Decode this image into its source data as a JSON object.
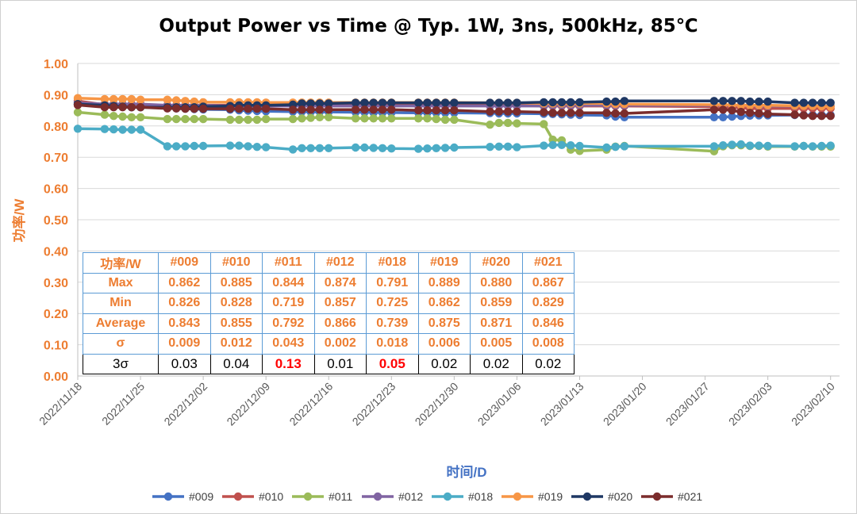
{
  "chart_data": {
    "type": "line",
    "title": "Output Power vs Time @ Typ. 1W, 3ns, 500kHz, 85℃",
    "xlabel": "时间/D",
    "ylabel": "功率/W",
    "ylim": [
      0,
      1.0
    ],
    "yticks": [
      "0.00",
      "0.10",
      "0.20",
      "0.30",
      "0.40",
      "0.50",
      "0.60",
      "0.70",
      "0.80",
      "0.90",
      "1.00"
    ],
    "xlim": [
      "2022-11-18",
      "2023-02-11"
    ],
    "xticks": [
      "2022/11/18",
      "2022/11/25",
      "2022/12/02",
      "2022/12/09",
      "2022/12/16",
      "2022/12/23",
      "2022/12/30",
      "2023/01/06",
      "2023/01/13",
      "2023/01/20",
      "2023/01/27",
      "2023/02/03",
      "2023/02/10"
    ],
    "grid": true,
    "legend_position": "bottom",
    "dates": [
      "2022-11-18",
      "2022-11-21",
      "2022-11-22",
      "2022-11-23",
      "2022-11-24",
      "2022-11-25",
      "2022-11-28",
      "2022-11-29",
      "2022-11-30",
      "2022-12-01",
      "2022-12-02",
      "2022-12-05",
      "2022-12-06",
      "2022-12-07",
      "2022-12-08",
      "2022-12-09",
      "2022-12-12",
      "2022-12-13",
      "2022-12-14",
      "2022-12-15",
      "2022-12-16",
      "2022-12-19",
      "2022-12-20",
      "2022-12-21",
      "2022-12-22",
      "2022-12-23",
      "2022-12-26",
      "2022-12-27",
      "2022-12-28",
      "2022-12-29",
      "2022-12-30",
      "2023-01-03",
      "2023-01-04",
      "2023-01-05",
      "2023-01-06",
      "2023-01-09",
      "2023-01-10",
      "2023-01-11",
      "2023-01-12",
      "2023-01-13",
      "2023-01-16",
      "2023-01-17",
      "2023-01-18",
      "2023-01-28",
      "2023-01-29",
      "2023-01-30",
      "2023-01-31",
      "2023-02-01",
      "2023-02-02",
      "2023-02-03",
      "2023-02-06",
      "2023-02-07",
      "2023-02-08",
      "2023-02-09",
      "2023-02-10"
    ],
    "series": [
      {
        "name": "#009",
        "color": "#4472C4",
        "values": [
          0.87,
          0.862,
          0.862,
          0.862,
          0.86,
          0.86,
          0.858,
          0.856,
          0.855,
          0.854,
          0.853,
          0.852,
          0.85,
          0.849,
          0.848,
          0.847,
          0.846,
          0.846,
          0.845,
          0.845,
          0.845,
          0.844,
          0.844,
          0.843,
          0.843,
          0.843,
          0.842,
          0.842,
          0.842,
          0.842,
          0.842,
          0.841,
          0.84,
          0.84,
          0.84,
          0.839,
          0.838,
          0.837,
          0.836,
          0.835,
          0.834,
          0.83,
          0.828,
          0.828,
          0.828,
          0.83,
          0.832,
          0.833,
          0.834,
          0.834,
          0.835,
          0.835,
          0.835,
          0.835,
          0.835
        ]
      },
      {
        "name": "#010",
        "color": "#C0504D",
        "values": [
          0.88,
          0.868,
          0.868,
          0.866,
          0.866,
          0.866,
          0.866,
          0.866,
          0.866,
          0.866,
          0.866,
          0.866,
          0.866,
          0.866,
          0.866,
          0.866,
          0.866,
          0.866,
          0.866,
          0.866,
          0.866,
          0.866,
          0.866,
          0.866,
          0.866,
          0.866,
          0.866,
          0.866,
          0.866,
          0.866,
          0.866,
          0.866,
          0.866,
          0.866,
          0.866,
          0.864,
          0.864,
          0.864,
          0.864,
          0.864,
          0.864,
          0.864,
          0.864,
          0.862,
          0.86,
          0.86,
          0.858,
          0.856,
          0.856,
          0.856,
          0.856,
          0.856,
          0.856,
          0.856,
          0.856
        ]
      },
      {
        "name": "#011",
        "color": "#9BBB59",
        "values": [
          0.844,
          0.836,
          0.832,
          0.83,
          0.828,
          0.828,
          0.822,
          0.822,
          0.822,
          0.822,
          0.822,
          0.82,
          0.82,
          0.82,
          0.82,
          0.822,
          0.822,
          0.824,
          0.826,
          0.828,
          0.828,
          0.824,
          0.824,
          0.824,
          0.824,
          0.824,
          0.824,
          0.824,
          0.822,
          0.82,
          0.82,
          0.804,
          0.81,
          0.81,
          0.808,
          0.806,
          0.756,
          0.754,
          0.724,
          0.72,
          0.724,
          0.734,
          0.736,
          0.719,
          0.735,
          0.738,
          0.738,
          0.736,
          0.736,
          0.734,
          0.734,
          0.736,
          0.734,
          0.734,
          0.734
        ]
      },
      {
        "name": "#012",
        "color": "#8064A2",
        "values": [
          0.874,
          0.87,
          0.87,
          0.87,
          0.87,
          0.87,
          0.866,
          0.866,
          0.866,
          0.866,
          0.866,
          0.864,
          0.864,
          0.864,
          0.864,
          0.864,
          0.864,
          0.864,
          0.864,
          0.864,
          0.864,
          0.864,
          0.864,
          0.864,
          0.864,
          0.864,
          0.864,
          0.864,
          0.864,
          0.864,
          0.864,
          0.864,
          0.864,
          0.864,
          0.864,
          0.864,
          0.866,
          0.866,
          0.866,
          0.866,
          0.866,
          0.866,
          0.866,
          0.866,
          0.866,
          0.866,
          0.866,
          0.866,
          0.864,
          0.864,
          0.864,
          0.864,
          0.864,
          0.864,
          0.864
        ]
      },
      {
        "name": "#018",
        "color": "#4BACC6",
        "values": [
          0.791,
          0.79,
          0.789,
          0.788,
          0.788,
          0.788,
          0.735,
          0.735,
          0.735,
          0.736,
          0.736,
          0.737,
          0.737,
          0.735,
          0.733,
          0.732,
          0.725,
          0.729,
          0.729,
          0.729,
          0.729,
          0.731,
          0.731,
          0.73,
          0.729,
          0.728,
          0.727,
          0.728,
          0.729,
          0.73,
          0.731,
          0.733,
          0.734,
          0.734,
          0.732,
          0.737,
          0.739,
          0.739,
          0.738,
          0.736,
          0.731,
          0.733,
          0.735,
          0.735,
          0.738,
          0.74,
          0.741,
          0.737,
          0.737,
          0.736,
          0.735,
          0.736,
          0.735,
          0.736,
          0.737
        ]
      },
      {
        "name": "#019",
        "color": "#F79646",
        "values": [
          0.889,
          0.886,
          0.886,
          0.886,
          0.886,
          0.884,
          0.884,
          0.882,
          0.88,
          0.878,
          0.876,
          0.876,
          0.876,
          0.876,
          0.876,
          0.875,
          0.875,
          0.875,
          0.875,
          0.875,
          0.875,
          0.875,
          0.875,
          0.875,
          0.875,
          0.875,
          0.875,
          0.875,
          0.875,
          0.875,
          0.875,
          0.874,
          0.874,
          0.874,
          0.874,
          0.872,
          0.872,
          0.872,
          0.872,
          0.872,
          0.872,
          0.87,
          0.87,
          0.868,
          0.868,
          0.867,
          0.866,
          0.866,
          0.866,
          0.866,
          0.865,
          0.864,
          0.864,
          0.863,
          0.862
        ]
      },
      {
        "name": "#020",
        "color": "#1F3864",
        "values": [
          0.87,
          0.866,
          0.864,
          0.862,
          0.86,
          0.86,
          0.86,
          0.86,
          0.86,
          0.86,
          0.862,
          0.864,
          0.866,
          0.866,
          0.866,
          0.866,
          0.868,
          0.872,
          0.872,
          0.872,
          0.872,
          0.874,
          0.874,
          0.874,
          0.874,
          0.874,
          0.874,
          0.874,
          0.874,
          0.874,
          0.874,
          0.874,
          0.874,
          0.874,
          0.874,
          0.876,
          0.876,
          0.876,
          0.876,
          0.876,
          0.878,
          0.878,
          0.88,
          0.88,
          0.88,
          0.88,
          0.88,
          0.878,
          0.878,
          0.878,
          0.874,
          0.874,
          0.874,
          0.874,
          0.874
        ]
      },
      {
        "name": "#021",
        "color": "#7B2C2C",
        "values": [
          0.867,
          0.86,
          0.86,
          0.86,
          0.86,
          0.86,
          0.856,
          0.856,
          0.855,
          0.855,
          0.855,
          0.855,
          0.855,
          0.855,
          0.855,
          0.855,
          0.852,
          0.852,
          0.852,
          0.852,
          0.852,
          0.852,
          0.852,
          0.852,
          0.852,
          0.852,
          0.85,
          0.85,
          0.85,
          0.85,
          0.85,
          0.846,
          0.846,
          0.846,
          0.846,
          0.844,
          0.842,
          0.842,
          0.842,
          0.842,
          0.842,
          0.84,
          0.84,
          0.852,
          0.852,
          0.85,
          0.845,
          0.842,
          0.84,
          0.838,
          0.836,
          0.834,
          0.832,
          0.832,
          0.832
        ]
      }
    ],
    "table": {
      "headers": [
        "功率/W",
        "#009",
        "#010",
        "#011",
        "#012",
        "#018",
        "#019",
        "#020",
        "#021"
      ],
      "rows": [
        {
          "label": "Max",
          "values": [
            "0.862",
            "0.885",
            "0.844",
            "0.874",
            "0.791",
            "0.889",
            "0.880",
            "0.867"
          ]
        },
        {
          "label": "Min",
          "values": [
            "0.826",
            "0.828",
            "0.719",
            "0.857",
            "0.725",
            "0.862",
            "0.859",
            "0.829"
          ]
        },
        {
          "label": "Average",
          "values": [
            "0.843",
            "0.855",
            "0.792",
            "0.866",
            "0.739",
            "0.875",
            "0.871",
            "0.846"
          ]
        },
        {
          "label": "σ",
          "values": [
            "0.009",
            "0.012",
            "0.043",
            "0.002",
            "0.018",
            "0.006",
            "0.005",
            "0.008"
          ]
        },
        {
          "label": "3σ",
          "values": [
            "0.03",
            "0.04",
            "0.13",
            "0.01",
            "0.05",
            "0.02",
            "0.02",
            "0.02"
          ],
          "highlight": [
            "#011",
            "#018"
          ]
        }
      ]
    },
    "colors": {
      "accent": "#ED7D31",
      "axis_label": "#4472C4",
      "highlight": "#FF0000",
      "table_border": "#5B9BD5"
    }
  }
}
